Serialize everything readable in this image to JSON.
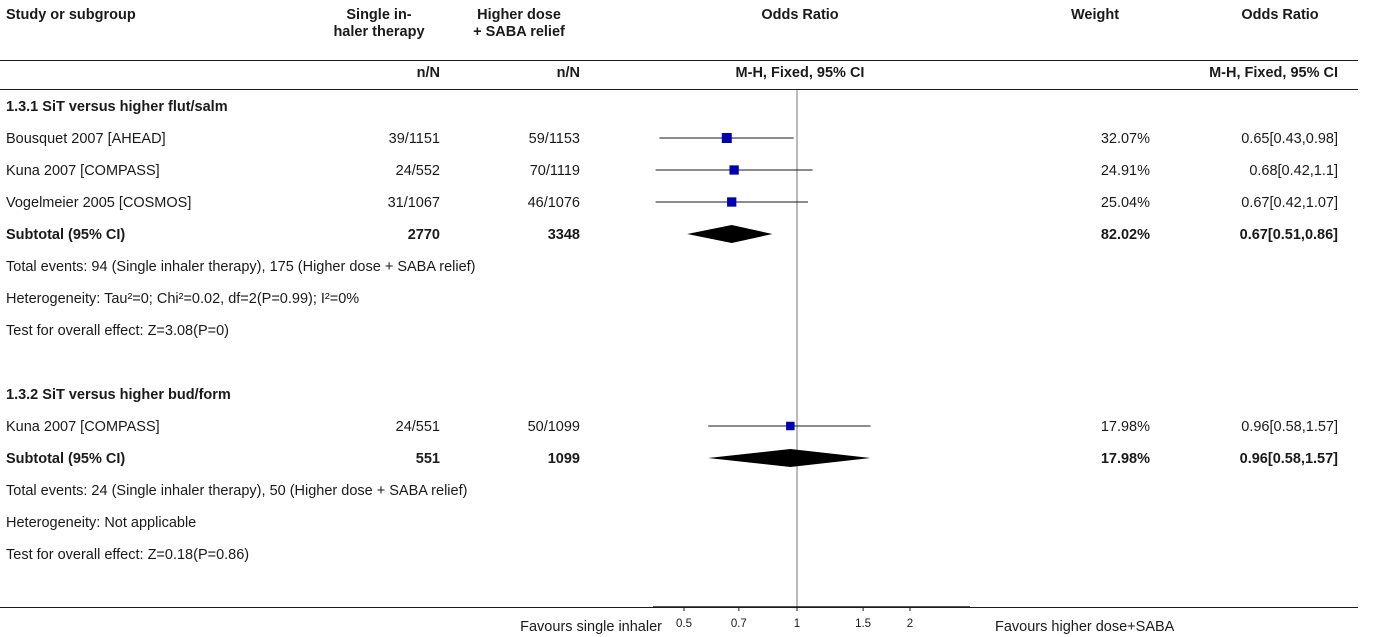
{
  "header": {
    "study_col": "Study or subgroup",
    "exp_col_line1": "Single in-",
    "exp_col_line2": "haler therapy",
    "ctl_col_line1": "Higher dose",
    "ctl_col_line2": "+ SABA relief",
    "or_col": "Odds Ratio",
    "weight_col": "Weight",
    "or_col2": "Odds Ratio",
    "exp_sub": "n/N",
    "ctl_sub": "n/N",
    "method_plot": "M-H, Fixed, 95% CI",
    "method_text": "M-H, Fixed, 95% CI"
  },
  "groups": [
    {
      "title": "1.3.1 SiT versus higher flut/salm",
      "studies": [
        {
          "name": "Bousquet 2007 [AHEAD]",
          "exp": "39/1151",
          "ctl": "59/1153",
          "weight": "32.07%",
          "ci_text": "0.65[0.43,0.98]"
        },
        {
          "name": "Kuna 2007 [COMPASS]",
          "exp": "24/552",
          "ctl": "70/1119",
          "weight": "24.91%",
          "ci_text": "0.68[0.42,1.1]"
        },
        {
          "name": "Vogelmeier 2005 [COSMOS]",
          "exp": "31/1067",
          "ctl": "46/1076",
          "weight": "25.04%",
          "ci_text": "0.67[0.42,1.07]"
        }
      ],
      "subtotal": {
        "label": "Subtotal (95% CI)",
        "exp_total": "2770",
        "ctl_total": "3348",
        "weight": "82.02%",
        "ci_text": "0.67[0.51,0.86]"
      },
      "total_events": "Total events: 94 (Single inhaler therapy), 175 (Higher dose + SABA relief)",
      "heterogeneity": "Heterogeneity: Tau²=0; Chi²=0.02, df=2(P=0.99); I²=0%",
      "overall_effect": "Test for overall effect: Z=3.08(P=0)"
    },
    {
      "title": "1.3.2 SiT versus higher bud/form",
      "studies": [
        {
          "name": "Kuna 2007 [COMPASS]",
          "exp": "24/551",
          "ctl": "50/1099",
          "weight": "17.98%",
          "ci_text": "0.96[0.58,1.57]"
        }
      ],
      "subtotal": {
        "label": "Subtotal (95% CI)",
        "exp_total": "551",
        "ctl_total": "1099",
        "weight": "17.98%",
        "ci_text": "0.96[0.58,1.57]"
      },
      "total_events": "Total events: 24 (Single inhaler therapy), 50 (Higher dose + SABA relief)",
      "heterogeneity": "Heterogeneity: Not applicable",
      "overall_effect": "Test for overall effect: Z=0.18(P=0.86)"
    }
  ],
  "footer": {
    "favours_left": "Favours single inhaler",
    "favours_right": "Favours higher dose+SABA"
  },
  "colors": {
    "marker": "#0000b3",
    "line": "#1a1a1a",
    "diamond": "#000000",
    "null_line": "#777777"
  },
  "chart_data": {
    "type": "forest",
    "scale": "log",
    "xlim": [
      0.4,
      2.5
    ],
    "ticks": [
      0.5,
      0.7,
      1,
      1.5,
      2
    ],
    "tick_labels": [
      "0.5",
      "0.7",
      "1",
      "1.5",
      "2"
    ],
    "null_value": 1,
    "studies": [
      {
        "group": 0,
        "name": "Bousquet 2007 [AHEAD]",
        "or": 0.65,
        "lo": 0.43,
        "hi": 0.98,
        "weight": 32.07
      },
      {
        "group": 0,
        "name": "Kuna 2007 [COMPASS]",
        "or": 0.68,
        "lo": 0.42,
        "hi": 1.1,
        "weight": 24.91
      },
      {
        "group": 0,
        "name": "Vogelmeier 2005 [COSMOS]",
        "or": 0.67,
        "lo": 0.42,
        "hi": 1.07,
        "weight": 25.04
      },
      {
        "group": 1,
        "name": "Kuna 2007 [COMPASS]",
        "or": 0.96,
        "lo": 0.58,
        "hi": 1.57,
        "weight": 17.98
      }
    ],
    "subtotals": [
      {
        "group": 0,
        "or": 0.67,
        "lo": 0.51,
        "hi": 0.86,
        "weight": 82.02
      },
      {
        "group": 1,
        "or": 0.96,
        "lo": 0.58,
        "hi": 1.57,
        "weight": 17.98
      }
    ]
  }
}
